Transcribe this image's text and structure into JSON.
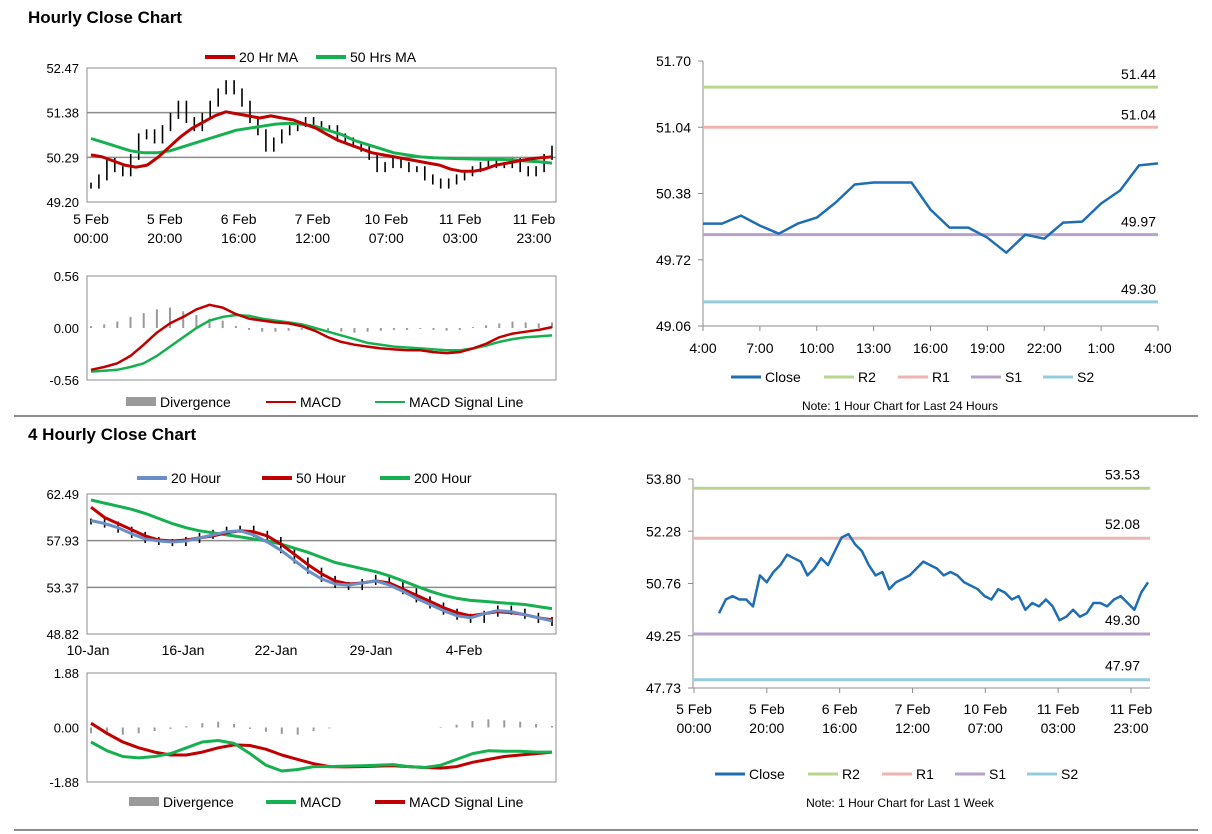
{
  "sections": {
    "hourly_title": "Hourly Close Chart",
    "four_hourly_title": "4 Hourly Close Chart"
  },
  "colors": {
    "ma_red": "#c00000",
    "ma_green": "#17b050",
    "ma_blue": "#6a8fc7",
    "close_blue": "#1f6db3",
    "r2": "#b9d58f",
    "r1": "#f0b3b3",
    "s1": "#b4a2c9",
    "s2": "#94ccdc",
    "divergence": "#9a9a9a",
    "grid": "#8c8c8c"
  },
  "chart_data": [
    {
      "id": "hourly_price",
      "type": "line",
      "title": "Hourly price with moving averages",
      "legend": [
        "20 Hr MA",
        "50 Hrs MA"
      ],
      "yticks": [
        "52.47",
        "51.38",
        "50.29",
        "49.20"
      ],
      "ylim": [
        49.2,
        52.47
      ],
      "xticks": [
        [
          "5 Feb",
          "00:00"
        ],
        [
          "5 Feb",
          "20:00"
        ],
        [
          "6 Feb",
          "16:00"
        ],
        [
          "7 Feb",
          "12:00"
        ],
        [
          "10 Feb",
          "07:00"
        ],
        [
          "11 Feb",
          "03:00"
        ],
        [
          "11 Feb",
          "23:00"
        ]
      ],
      "price": [
        49.6,
        49.8,
        50.2,
        50.0,
        49.9,
        50.3,
        50.8,
        50.9,
        50.7,
        51.0,
        51.3,
        51.6,
        51.2,
        51.0,
        51.3,
        51.6,
        51.9,
        52.1,
        51.9,
        51.6,
        51.2,
        50.9,
        50.5,
        50.7,
        50.9,
        51.0,
        51.1,
        51.2,
        51.1,
        51.0,
        51.0,
        50.8,
        50.7,
        50.6,
        50.5,
        50.3,
        50.0,
        50.1,
        50.2,
        50.1,
        50.0,
        50.0,
        49.8,
        49.7,
        49.6,
        49.7,
        49.8,
        49.9,
        50.0,
        50.1,
        50.2,
        50.1,
        50.1,
        50.2,
        50.0,
        49.9,
        50.0,
        50.3,
        50.5
      ],
      "ma20": [
        50.35,
        50.3,
        50.2,
        50.1,
        50.05,
        50.1,
        50.3,
        50.55,
        50.8,
        51.0,
        51.15,
        51.3,
        51.4,
        51.35,
        51.3,
        51.25,
        51.3,
        51.25,
        51.2,
        51.1,
        51.0,
        50.85,
        50.7,
        50.6,
        50.5,
        50.4,
        50.35,
        50.3,
        50.25,
        50.2,
        50.15,
        50.1,
        50.0,
        49.95,
        49.95,
        50.0,
        50.1,
        50.15,
        50.2,
        50.25,
        50.28,
        50.3
      ],
      "ma50": [
        50.75,
        50.65,
        50.55,
        50.45,
        50.4,
        50.4,
        50.45,
        50.55,
        50.65,
        50.75,
        50.85,
        50.95,
        51.0,
        51.05,
        51.1,
        51.12,
        51.1,
        51.05,
        50.95,
        50.85,
        50.7,
        50.6,
        50.5,
        50.4,
        50.35,
        50.3,
        50.28,
        50.27,
        50.26,
        50.25,
        50.24,
        50.24,
        50.23,
        50.2,
        50.18,
        50.15
      ]
    },
    {
      "id": "hourly_macd",
      "type": "line",
      "yticks": [
        "0.56",
        "0.00",
        "-0.56"
      ],
      "ylim": [
        -0.56,
        0.56
      ],
      "legend": [
        "Divergence",
        "MACD",
        "MACD Signal Line"
      ],
      "macd": [
        -0.45,
        -0.42,
        -0.38,
        -0.3,
        -0.18,
        -0.05,
        0.05,
        0.12,
        0.2,
        0.25,
        0.22,
        0.15,
        0.1,
        0.08,
        0.06,
        0.05,
        0.02,
        -0.03,
        -0.1,
        -0.15,
        -0.18,
        -0.2,
        -0.22,
        -0.23,
        -0.24,
        -0.24,
        -0.26,
        -0.27,
        -0.26,
        -0.22,
        -0.17,
        -0.1,
        -0.06,
        -0.04,
        -0.02,
        0.01
      ],
      "signal": [
        -0.47,
        -0.46,
        -0.45,
        -0.42,
        -0.38,
        -0.3,
        -0.2,
        -0.1,
        0.0,
        0.08,
        0.12,
        0.14,
        0.13,
        0.1,
        0.08,
        0.06,
        0.04,
        0.0,
        -0.04,
        -0.08,
        -0.12,
        -0.16,
        -0.18,
        -0.2,
        -0.21,
        -0.22,
        -0.23,
        -0.24,
        -0.24,
        -0.22,
        -0.19,
        -0.15,
        -0.12,
        -0.1,
        -0.09,
        -0.08
      ],
      "divergence": [
        0.02,
        0.04,
        0.07,
        0.12,
        0.16,
        0.2,
        0.22,
        0.18,
        0.14,
        0.1,
        0.08,
        0.02,
        -0.02,
        -0.04,
        -0.04,
        -0.03,
        -0.02,
        -0.02,
        -0.03,
        -0.04,
        -0.05,
        -0.04,
        -0.03,
        -0.02,
        -0.02,
        -0.01,
        -0.02,
        -0.03,
        -0.02,
        0.01,
        0.03,
        0.05,
        0.07,
        0.06,
        0.05,
        0.06
      ]
    },
    {
      "id": "hourly_levels",
      "type": "line",
      "yticks": [
        "51.70",
        "51.04",
        "50.38",
        "49.72",
        "49.06"
      ],
      "ylim": [
        49.06,
        51.7
      ],
      "xticks": [
        "4:00",
        "7:00",
        "10:00",
        "13:00",
        "16:00",
        "19:00",
        "22:00",
        "1:00",
        "4:00"
      ],
      "close": [
        50.08,
        50.08,
        50.16,
        50.06,
        49.98,
        50.08,
        50.14,
        50.29,
        50.47,
        50.49,
        50.49,
        50.49,
        50.22,
        50.04,
        50.04,
        49.94,
        49.79,
        49.97,
        49.93,
        50.09,
        50.1,
        50.28,
        50.41,
        50.66,
        50.68
      ],
      "levels": [
        {
          "name": "R2",
          "value": 51.44,
          "label": "51.44"
        },
        {
          "name": "R1",
          "value": 51.04,
          "label": "51.04"
        },
        {
          "name": "S1",
          "value": 49.97,
          "label": "49.97"
        },
        {
          "name": "S2",
          "value": 49.3,
          "label": "49.30"
        }
      ],
      "legend": [
        "Close",
        "R2",
        "R1",
        "S1",
        "S2"
      ],
      "note": "Note: 1 Hour Chart for Last 24 Hours"
    },
    {
      "id": "four_hourly_price",
      "type": "line",
      "legend": [
        "20 Hour",
        "50 Hour",
        "200 Hour"
      ],
      "yticks": [
        "62.49",
        "57.93",
        "53.37",
        "48.82"
      ],
      "ylim": [
        48.82,
        62.49
      ],
      "xticks": [
        "10-Jan",
        "16-Jan",
        "22-Jan",
        "29-Jan",
        "4-Feb"
      ],
      "price": [
        59.8,
        59.5,
        59.0,
        58.5,
        58.0,
        57.8,
        57.7,
        58.0,
        58.4,
        58.7,
        59.0,
        59.1,
        58.6,
        58.0,
        57.0,
        56.0,
        55.0,
        54.2,
        53.6,
        53.4,
        53.9,
        54.3,
        53.8,
        53.0,
        52.2,
        51.6,
        51.0,
        50.5,
        50.2,
        50.8,
        51.3,
        51.0,
        50.6,
        50.2,
        49.9
      ],
      "ma20": [
        59.9,
        59.6,
        59.2,
        58.6,
        58.1,
        57.9,
        57.8,
        57.9,
        58.2,
        58.5,
        58.8,
        58.9,
        58.5,
        57.8,
        57.0,
        56.0,
        55.0,
        54.2,
        53.7,
        53.6,
        53.8,
        54.0,
        53.6,
        53.0,
        52.3,
        51.7,
        51.1,
        50.6,
        50.4,
        50.8,
        51.1,
        51.0,
        50.7,
        50.4,
        50.1
      ],
      "ma50": [
        61.2,
        60.2,
        59.6,
        59.0,
        58.4,
        58.0,
        57.9,
        58.0,
        58.2,
        58.4,
        58.7,
        58.9,
        58.8,
        58.4,
        57.6,
        56.6,
        55.6,
        54.7,
        54.0,
        53.7,
        53.8,
        54.0,
        53.8,
        53.2,
        52.6,
        52.0,
        51.4,
        50.9,
        50.6,
        50.8,
        51.0,
        50.9,
        50.7,
        50.4,
        50.2
      ],
      "ma200": [
        61.9,
        61.6,
        61.3,
        61.0,
        60.6,
        60.1,
        59.6,
        59.2,
        58.9,
        58.7,
        58.5,
        58.3,
        58.1,
        57.9,
        57.6,
        57.2,
        56.8,
        56.3,
        55.8,
        55.5,
        55.2,
        54.9,
        54.5,
        54.0,
        53.5,
        53.0,
        52.6,
        52.3,
        52.1,
        52.0,
        51.9,
        51.8,
        51.7,
        51.5,
        51.3
      ]
    },
    {
      "id": "four_hourly_macd",
      "type": "line",
      "yticks": [
        "1.88",
        "0.00",
        "-1.88"
      ],
      "ylim": [
        -1.88,
        1.88
      ],
      "legend": [
        "Divergence",
        "MACD",
        "MACD Signal Line"
      ],
      "macd": [
        -0.5,
        -0.8,
        -1.0,
        -1.05,
        -1.0,
        -0.9,
        -0.7,
        -0.5,
        -0.45,
        -0.55,
        -0.9,
        -1.3,
        -1.5,
        -1.45,
        -1.35,
        -1.35,
        -1.33,
        -1.32,
        -1.3,
        -1.28,
        -1.35,
        -1.38,
        -1.3,
        -1.1,
        -0.9,
        -0.8,
        -0.82,
        -0.82,
        -0.85,
        -0.85
      ],
      "signal": [
        0.15,
        -0.2,
        -0.5,
        -0.7,
        -0.85,
        -0.95,
        -0.95,
        -0.85,
        -0.7,
        -0.6,
        -0.62,
        -0.75,
        -0.95,
        -1.1,
        -1.25,
        -1.35,
        -1.36,
        -1.35,
        -1.33,
        -1.32,
        -1.35,
        -1.38,
        -1.4,
        -1.35,
        -1.2,
        -1.1,
        -1.0,
        -0.95,
        -0.9,
        -0.85
      ],
      "divergence": [
        -0.2,
        -0.25,
        -0.25,
        -0.2,
        -0.12,
        -0.05,
        0.05,
        0.15,
        0.2,
        0.12,
        -0.05,
        -0.15,
        -0.22,
        -0.25,
        -0.12,
        -0.03,
        0.0,
        0.0,
        0.0,
        0.0,
        0.0,
        0.0,
        0.02,
        0.1,
        0.22,
        0.28,
        0.25,
        0.2,
        0.12,
        0.05
      ]
    },
    {
      "id": "four_hourly_levels",
      "type": "line",
      "yticks": [
        "53.80",
        "52.28",
        "50.76",
        "49.25",
        "47.73"
      ],
      "ylim": [
        47.73,
        53.8
      ],
      "xticks": [
        [
          "5 Feb",
          "00:00"
        ],
        [
          "5 Feb",
          "20:00"
        ],
        [
          "6 Feb",
          "16:00"
        ],
        [
          "7 Feb",
          "12:00"
        ],
        [
          "10 Feb",
          "07:00"
        ],
        [
          "11 Feb",
          "03:00"
        ],
        [
          "11 Feb",
          "23:00"
        ]
      ],
      "close": [
        49.9,
        50.3,
        50.4,
        50.3,
        50.3,
        50.1,
        51.0,
        50.8,
        51.1,
        51.3,
        51.6,
        51.5,
        51.4,
        51.0,
        51.2,
        51.5,
        51.3,
        51.7,
        52.1,
        52.2,
        51.9,
        51.7,
        51.3,
        51.0,
        51.1,
        50.6,
        50.8,
        50.9,
        51.0,
        51.2,
        51.4,
        51.3,
        51.2,
        51.0,
        51.1,
        51.0,
        50.8,
        50.7,
        50.6,
        50.4,
        50.3,
        50.6,
        50.5,
        50.3,
        50.4,
        50.0,
        50.2,
        50.1,
        50.3,
        50.1,
        49.7,
        49.8,
        50.0,
        49.8,
        49.9,
        50.2,
        50.2,
        50.1,
        50.3,
        50.4,
        50.2,
        50.0,
        50.5,
        50.8
      ],
      "levels": [
        {
          "name": "R2",
          "value": 53.53,
          "label": "53.53"
        },
        {
          "name": "R1",
          "value": 52.08,
          "label": "52.08"
        },
        {
          "name": "S1",
          "value": 49.3,
          "label": "49.30"
        },
        {
          "name": "S2",
          "value": 47.97,
          "label": "47.97"
        }
      ],
      "legend": [
        "Close",
        "R2",
        "R1",
        "S1",
        "S2"
      ],
      "note": "Note: 1 Hour Chart for Last 1 Week"
    }
  ]
}
